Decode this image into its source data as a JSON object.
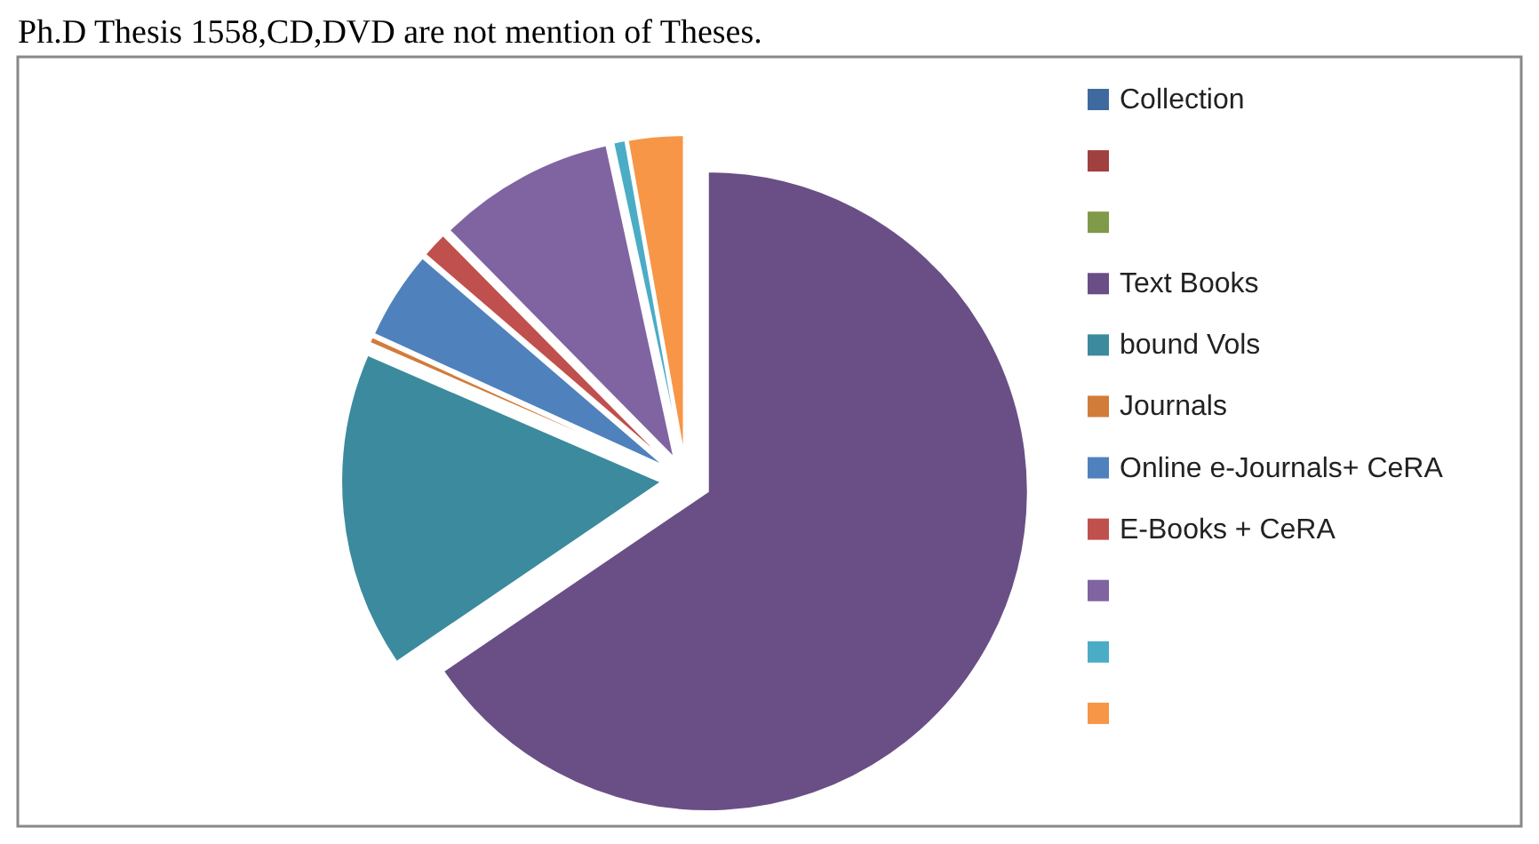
{
  "chart_data": {
    "type": "pie",
    "annotations": [
      "Ph.D Thesis 1558,CD,DVD are not mention of Theses."
    ],
    "categories": [
      "Collection",
      null,
      null,
      "Text Books",
      "bound Vols",
      "Journals",
      "Online  e-Journals+ CeRA",
      "E-Books + CeRA",
      null,
      null,
      null
    ],
    "values": [
      0,
      0,
      0,
      65.5,
      16,
      0.3,
      4.5,
      1.3,
      9,
      0.6,
      2.8
    ],
    "colors": [
      "#3f6a9f",
      "#a04040",
      "#7f9a48",
      "#6a4f86",
      "#3c8a9e",
      "#d27c3a",
      "#4f81bd",
      "#c0504d",
      "#8064a2",
      "#4bacc6",
      "#f79646"
    ],
    "legend": "right"
  }
}
